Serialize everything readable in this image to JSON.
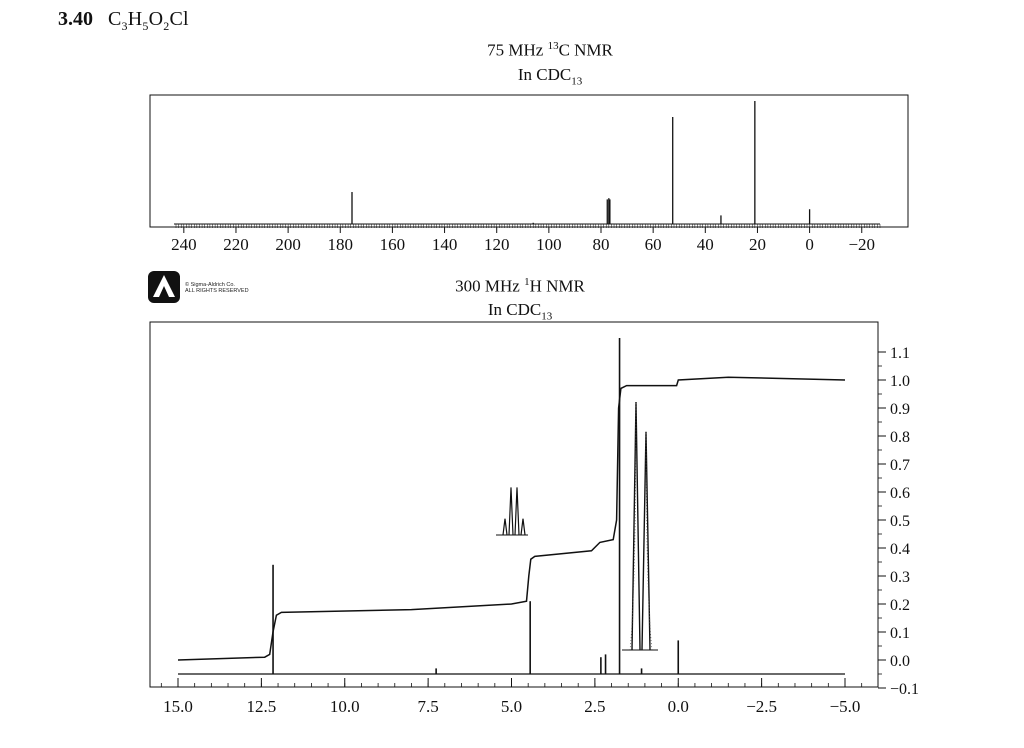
{
  "header": {
    "problem_number": "3.40",
    "formula_parts": [
      "C",
      "3",
      "H",
      "5",
      "O",
      "2",
      "Cl"
    ]
  },
  "chart_data": [
    {
      "type": "line",
      "name": "carbon",
      "title_prefix": "75 MHz ",
      "title_sup": "13",
      "title_suffix": "C NMR",
      "solvent_prefix": "In CDC",
      "solvent_sub": "13",
      "x_reversed": true,
      "xlim": [
        243,
        -27
      ],
      "ylim": [
        0,
        1
      ],
      "xticks": [
        240,
        220,
        200,
        180,
        160,
        140,
        120,
        100,
        80,
        60,
        40,
        20,
        0,
        -20
      ],
      "xtick_labels": [
        "240",
        "220",
        "200",
        "180",
        "160",
        "140",
        "120",
        "100",
        "80",
        "60",
        "40",
        "20",
        "0",
        "−20"
      ],
      "peaks": [
        {
          "x": 175.5,
          "y": 0.26
        },
        {
          "x": 77.6,
          "y": 0.2
        },
        {
          "x": 77.0,
          "y": 0.21
        },
        {
          "x": 76.6,
          "y": 0.2
        },
        {
          "x": 52.5,
          "y": 0.87
        },
        {
          "x": 34.0,
          "y": 0.07
        },
        {
          "x": 21.0,
          "y": 1.0
        },
        {
          "x": 0.0,
          "y": 0.12
        },
        {
          "x": 106.0,
          "y": 0.01
        }
      ]
    },
    {
      "type": "line",
      "name": "proton",
      "title_prefix": "300 MHz ",
      "title_sup": "1",
      "title_suffix": "H NMR",
      "solvent_prefix": "In CDC",
      "solvent_sub": "13",
      "x_reversed": true,
      "xlim": [
        15.5,
        -5.5
      ],
      "ylim": [
        -0.1,
        1.15
      ],
      "xticks": [
        15.0,
        12.5,
        10.0,
        7.5,
        5.0,
        2.5,
        0.0,
        -2.5,
        -5.0
      ],
      "xtick_labels": [
        "15.0",
        "12.5",
        "10.0",
        "7.5",
        "5.0",
        "2.5",
        "0.0",
        "−2.5",
        "−5.0"
      ],
      "yticks": [
        1.1,
        1.0,
        0.9,
        0.8,
        0.7,
        0.6,
        0.5,
        0.4,
        0.3,
        0.2,
        0.1,
        0.0,
        -0.1
      ],
      "ytick_labels": [
        "1.1",
        "1.0",
        "0.9",
        "0.8",
        "0.7",
        "0.6",
        "0.5",
        "0.4",
        "0.3",
        "0.2",
        "0.1",
        "0.0",
        "−0.1"
      ],
      "baseline": -0.05,
      "peaks": [
        {
          "x": 12.15,
          "y": 0.34
        },
        {
          "x": 7.26,
          "y": -0.03
        },
        {
          "x": 4.44,
          "y": 0.21
        },
        {
          "x": 2.32,
          "y": 0.01
        },
        {
          "x": 2.18,
          "y": 0.02
        },
        {
          "x": 1.76,
          "y": 1.15
        },
        {
          "x": 1.1,
          "y": -0.03
        },
        {
          "x": 0.0,
          "y": 0.07
        }
      ],
      "integral": [
        [
          15.0,
          0.0
        ],
        [
          12.4,
          0.01
        ],
        [
          12.25,
          0.02
        ],
        [
          12.15,
          0.1
        ],
        [
          12.05,
          0.16
        ],
        [
          11.9,
          0.17
        ],
        [
          8.0,
          0.18
        ],
        [
          5.0,
          0.2
        ],
        [
          4.55,
          0.21
        ],
        [
          4.48,
          0.3
        ],
        [
          4.42,
          0.36
        ],
        [
          4.3,
          0.37
        ],
        [
          2.6,
          0.39
        ],
        [
          2.35,
          0.42
        ],
        [
          1.95,
          0.43
        ],
        [
          1.85,
          0.5
        ],
        [
          1.79,
          0.9
        ],
        [
          1.72,
          0.97
        ],
        [
          1.55,
          0.98
        ],
        [
          0.05,
          0.98
        ],
        [
          0.0,
          1.0
        ],
        [
          -1.5,
          1.01
        ],
        [
          -5.0,
          1.0
        ]
      ],
      "inset_quartet_heights": [
        0.28,
        0.82,
        0.82,
        0.28
      ],
      "inset_doublet_heights": [
        1.0,
        0.88
      ]
    }
  ]
}
